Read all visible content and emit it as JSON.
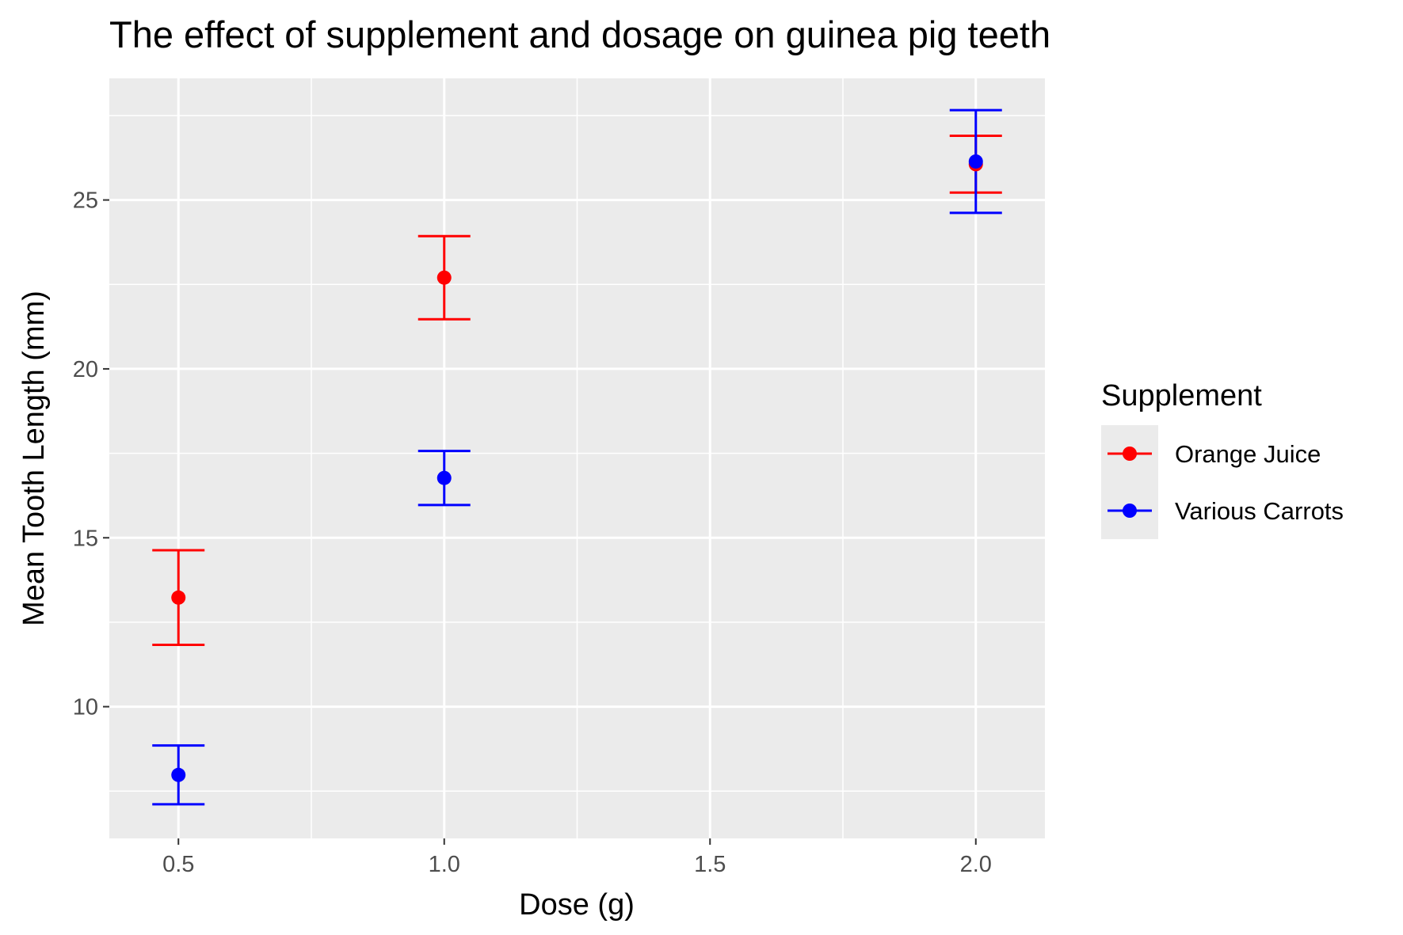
{
  "chart_data": {
    "type": "scatter",
    "title": "The effect of supplement and dosage on guinea pig teeth",
    "xlabel": "Dose (g)",
    "ylabel": "Mean Tooth Length (mm)",
    "xlim": [
      0.37,
      2.13
    ],
    "ylim": [
      6.1,
      28.6
    ],
    "x_ticks": [
      0.5,
      1.0,
      1.5,
      2.0
    ],
    "x_tick_labels": [
      "0.5",
      "1.0",
      "1.5",
      "2.0"
    ],
    "y_ticks": [
      10,
      15,
      20,
      25
    ],
    "y_tick_labels": [
      "10",
      "15",
      "20",
      "25"
    ],
    "grid": true,
    "legend": {
      "title": "Supplement",
      "position": "right"
    },
    "series": [
      {
        "name": "Orange Juice",
        "color": "#ff0000",
        "points": [
          {
            "x": 0.5,
            "y": 13.23,
            "lower": 11.83,
            "upper": 14.63
          },
          {
            "x": 1.0,
            "y": 22.7,
            "lower": 21.47,
            "upper": 23.93
          },
          {
            "x": 2.0,
            "y": 26.06,
            "lower": 25.22,
            "upper": 26.9
          }
        ]
      },
      {
        "name": "Various Carrots",
        "color": "#0000ff",
        "points": [
          {
            "x": 0.5,
            "y": 7.98,
            "lower": 7.11,
            "upper": 8.85
          },
          {
            "x": 1.0,
            "y": 16.77,
            "lower": 15.97,
            "upper": 17.57
          },
          {
            "x": 2.0,
            "y": 26.14,
            "lower": 24.62,
            "upper": 27.66
          }
        ]
      }
    ]
  }
}
